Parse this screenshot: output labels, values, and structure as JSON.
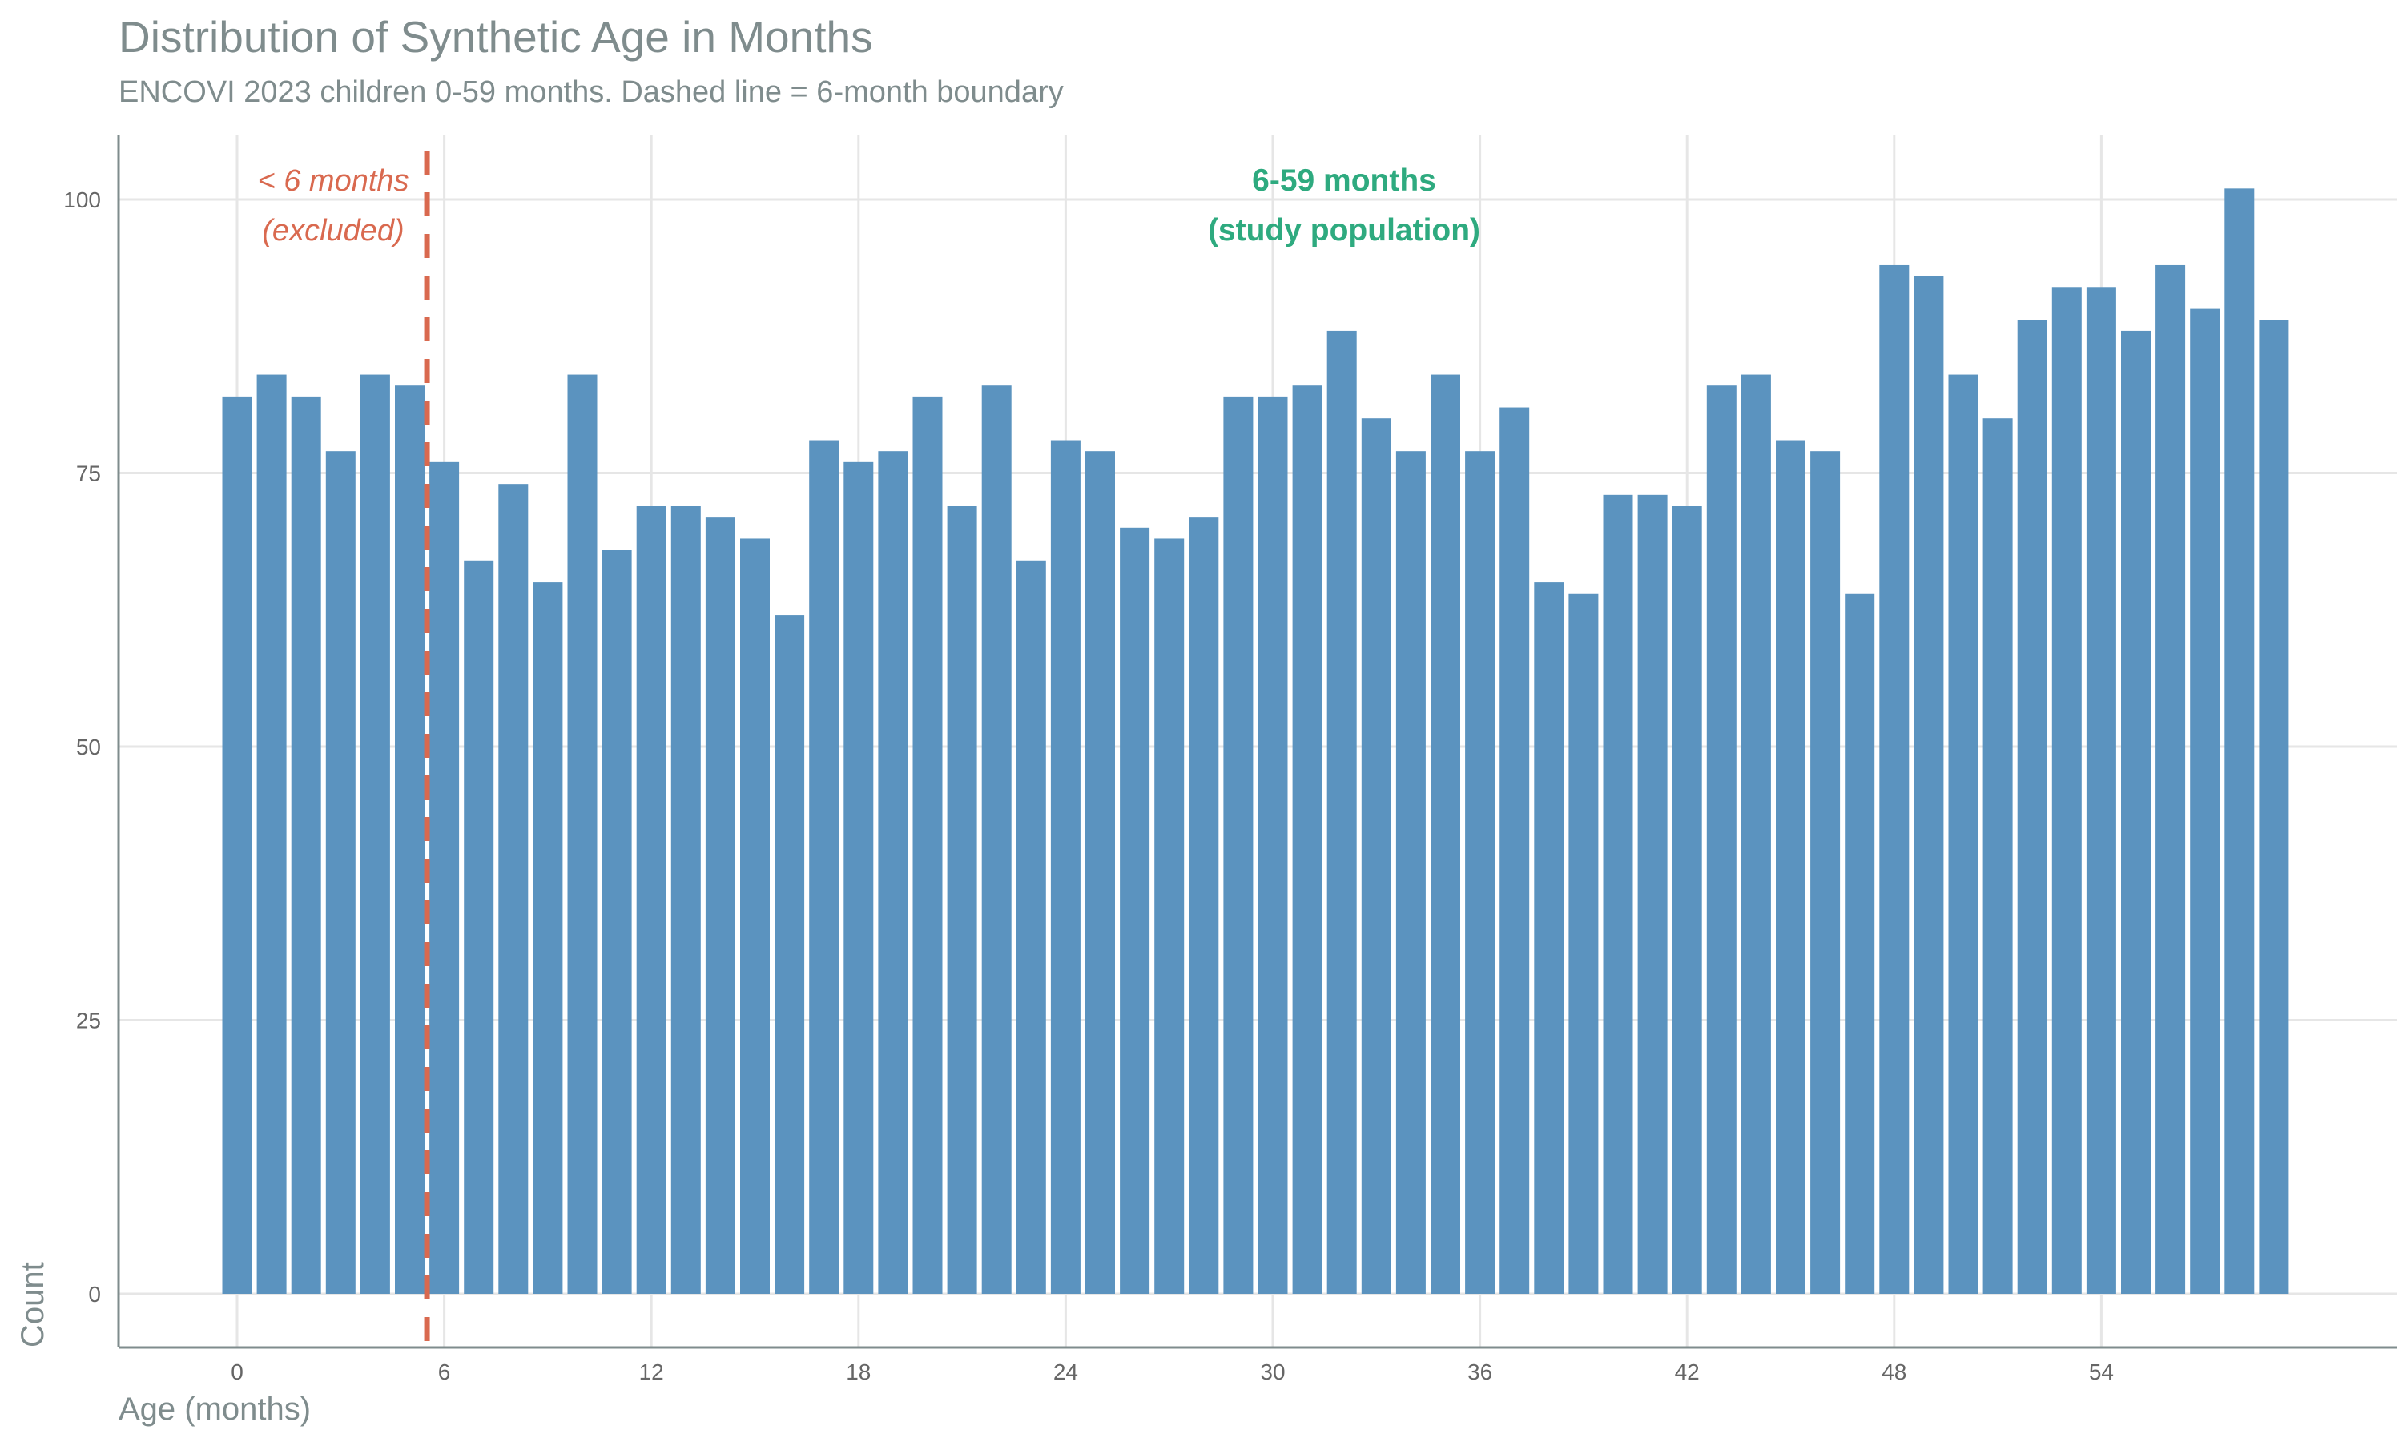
{
  "chart_data": {
    "type": "bar",
    "title": "Distribution of Synthetic Age in Months",
    "subtitle": "ENCOVI 2023 children 0-59 months. Dashed line = 6-month boundary",
    "xlabel": "Age (months)",
    "ylabel": "Count",
    "x": [
      0,
      1,
      2,
      3,
      4,
      5,
      6,
      7,
      8,
      9,
      10,
      11,
      12,
      13,
      14,
      15,
      16,
      17,
      18,
      19,
      20,
      21,
      22,
      23,
      24,
      25,
      26,
      27,
      28,
      29,
      30,
      31,
      32,
      33,
      34,
      35,
      36,
      37,
      38,
      39,
      40,
      41,
      42,
      43,
      44,
      45,
      46,
      47,
      48,
      49,
      50,
      51,
      52,
      53,
      54,
      55,
      56,
      57,
      58,
      59
    ],
    "values": [
      82,
      84,
      82,
      77,
      84,
      83,
      76,
      67,
      74,
      65,
      84,
      68,
      72,
      72,
      71,
      69,
      62,
      78,
      76,
      77,
      82,
      72,
      83,
      67,
      78,
      77,
      70,
      69,
      71,
      82,
      82,
      83,
      88,
      80,
      77,
      84,
      77,
      81,
      65,
      64,
      73,
      73,
      72,
      83,
      84,
      78,
      77,
      64,
      94,
      93,
      84,
      80,
      89,
      92,
      92,
      88,
      94,
      90,
      101,
      89
    ],
    "xlim": [
      -1,
      60
    ],
    "ylim": [
      0,
      101
    ],
    "x_ticks": [
      0,
      6,
      12,
      18,
      24,
      30,
      36,
      42,
      48,
      54
    ],
    "y_ticks": [
      0,
      25,
      50,
      75,
      100
    ],
    "reference_line": {
      "x": 5.5,
      "style": "dashed",
      "color": "#d9694f"
    },
    "annotations": {
      "excluded_line1": "< 6 months",
      "excluded_line2": "(excluded)",
      "study_line1": "6-59 months",
      "study_line2": "(study population)"
    },
    "colors": {
      "bar": "#5b93bf",
      "excluded": "#d9694f",
      "study": "#2eaa7f",
      "grid": "#e6e6e6",
      "axis": "#7f8c8d",
      "text": "#7f8c8d"
    },
    "grid": true
  }
}
